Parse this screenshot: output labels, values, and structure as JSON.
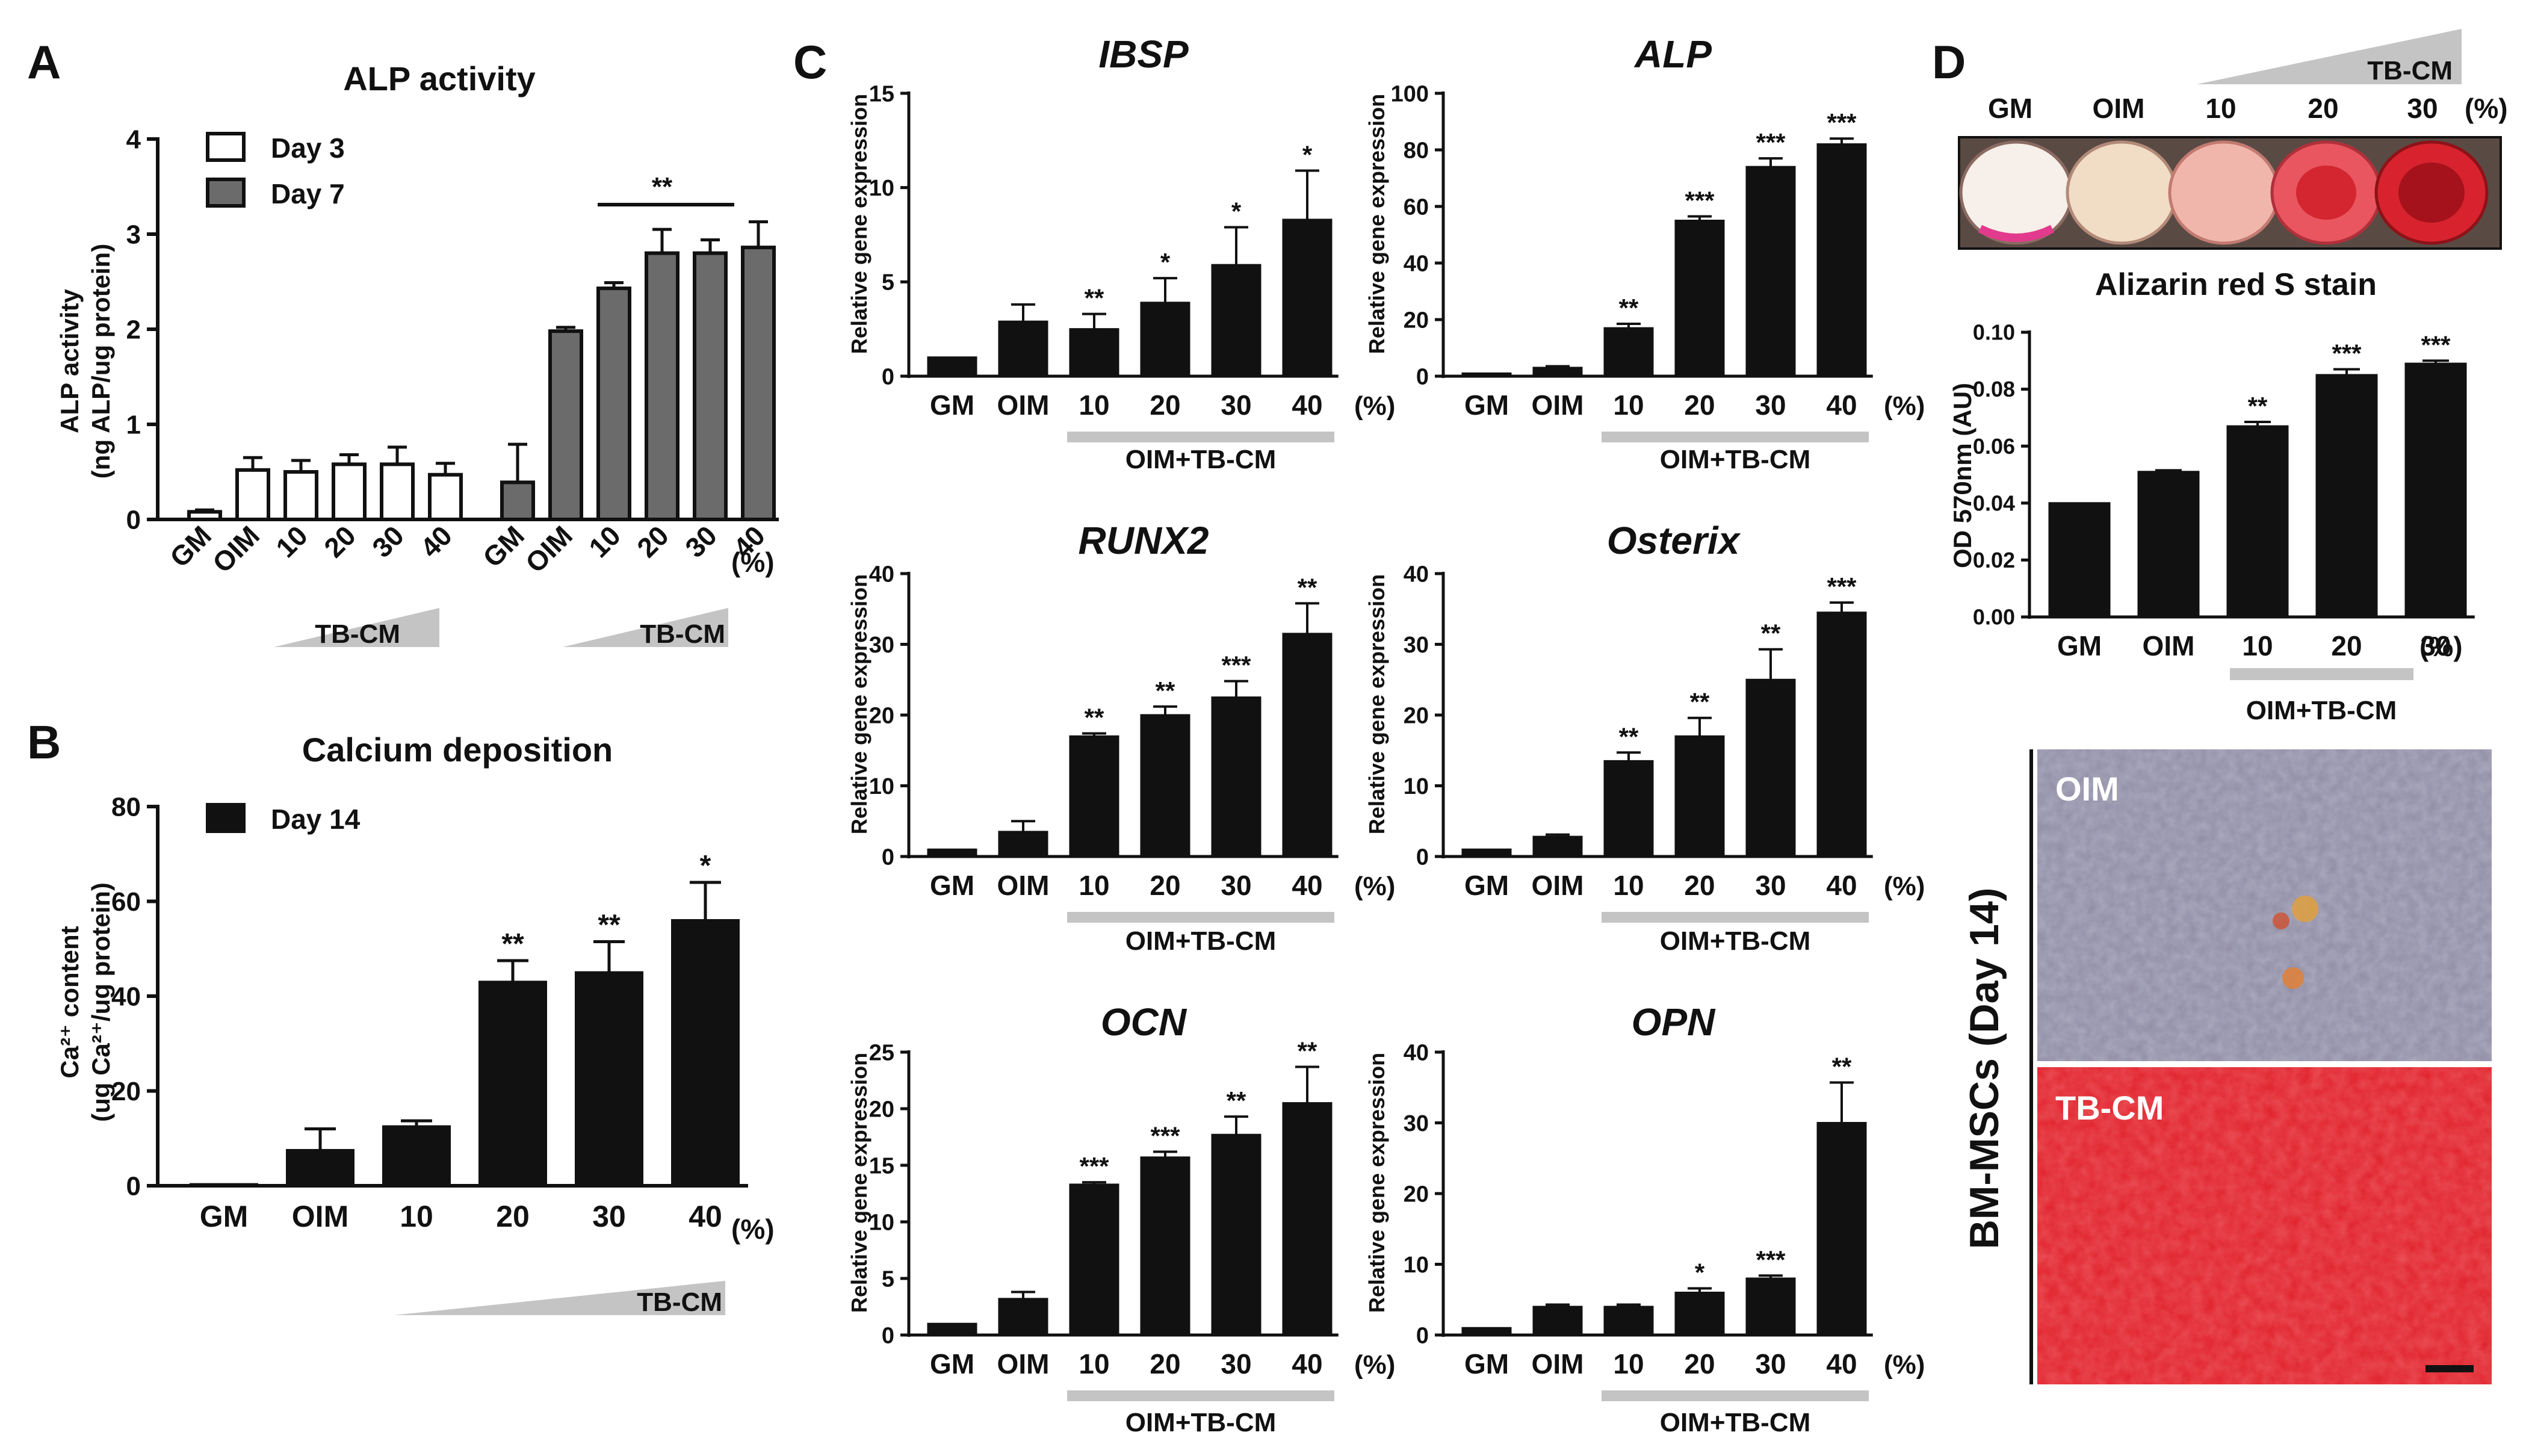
{
  "panels": {
    "A": {
      "letter": "A",
      "title": "ALP activity",
      "ylabel_line1": "ALP activity",
      "ylabel_line2": "(ng ALP/ug protein)",
      "legend": [
        "Day 3",
        "Day 7"
      ],
      "group_label": "TB-CM",
      "unit": "(%)",
      "bracket_sig": "**"
    },
    "B": {
      "letter": "B",
      "title": "Calcium deposition",
      "ylabel_line1": "Ca²⁺ content",
      "ylabel_line2": "(ug Ca²⁺/ug protein)",
      "legend": [
        "Day 14"
      ],
      "group_label": "TB-CM",
      "unit": "(%)"
    },
    "C": {
      "letter": "C",
      "ylabel": "Relative gene expression",
      "group_label": "OIM+TB-CM",
      "unit": "(%)"
    },
    "D": {
      "letter": "D",
      "gradient_label": "TB-CM",
      "plate_labels": [
        "GM",
        "OIM",
        "10",
        "20",
        "30"
      ],
      "plate_unit": "(%)",
      "stain_title": "Alizarin red S stain",
      "ylabel": "OD 570nm (AU)",
      "group_label": "OIM+TB-CM",
      "unit": "(%)",
      "side_label": "BM-MSCs (Day 14)",
      "photo_labels": [
        "OIM",
        "TB-CM"
      ]
    }
  },
  "colors": {
    "bar_black": "#111111",
    "bar_grey": "#6b6b6b",
    "bar_white": "#ffffff",
    "wedge": "#c4c4c4",
    "stain_red": "#e0202a",
    "photo_bg": "#8f8ca4"
  },
  "chart_data": [
    {
      "id": "A",
      "type": "bar",
      "title": "ALP activity",
      "categories": [
        "GM",
        "OIM",
        "10",
        "20",
        "30",
        "40"
      ],
      "ylim": [
        0,
        4
      ],
      "yticks": [
        0,
        1,
        2,
        3,
        4
      ],
      "series": [
        {
          "name": "Day 3",
          "values": [
            0.08,
            0.52,
            0.5,
            0.58,
            0.58,
            0.47
          ],
          "errors": [
            0.02,
            0.13,
            0.12,
            0.1,
            0.18,
            0.12
          ],
          "significance": [
            "",
            "",
            "",
            "",
            "",
            ""
          ]
        },
        {
          "name": "Day 7",
          "values": [
            0.39,
            1.98,
            2.43,
            2.8,
            2.8,
            2.86
          ],
          "errors": [
            0.4,
            0.04,
            0.06,
            0.25,
            0.14,
            0.27
          ],
          "significance": [
            "",
            "",
            "",
            "",
            "",
            ""
          ]
        }
      ]
    },
    {
      "id": "B",
      "type": "bar",
      "title": "Calcium deposition",
      "categories": [
        "GM",
        "OIM",
        "10",
        "20",
        "30",
        "40"
      ],
      "ylim": [
        0,
        80
      ],
      "yticks": [
        0,
        20,
        40,
        60,
        80
      ],
      "series": [
        {
          "name": "Day 14",
          "values": [
            0.3,
            7.5,
            12.5,
            43,
            45,
            56
          ],
          "errors": [
            0,
            4.5,
            1.2,
            4.5,
            6.5,
            8
          ],
          "significance": [
            "",
            "",
            "",
            "**",
            "**",
            "*"
          ]
        }
      ]
    },
    {
      "id": "IBSP",
      "type": "bar",
      "title": "IBSP",
      "categories": [
        "GM",
        "OIM",
        "10",
        "20",
        "30",
        "40"
      ],
      "ylim": [
        0,
        15
      ],
      "yticks": [
        0,
        5,
        10,
        15
      ],
      "series": [
        {
          "name": "IBSP",
          "values": [
            1,
            2.9,
            2.5,
            3.9,
            5.9,
            8.3
          ],
          "errors": [
            0,
            0.9,
            0.8,
            1.3,
            2.0,
            2.6
          ],
          "significance": [
            "",
            "",
            "**",
            "*",
            "*",
            "*"
          ]
        }
      ]
    },
    {
      "id": "ALP",
      "type": "bar",
      "title": "ALP",
      "categories": [
        "GM",
        "OIM",
        "10",
        "20",
        "30",
        "40"
      ],
      "ylim": [
        0,
        100
      ],
      "yticks": [
        0,
        20,
        40,
        60,
        80,
        100
      ],
      "series": [
        {
          "name": "ALP",
          "values": [
            1,
            3,
            17,
            55,
            74,
            82
          ],
          "errors": [
            0,
            0.5,
            1.5,
            1.5,
            3,
            2
          ],
          "significance": [
            "",
            "",
            "**",
            "***",
            "***",
            "***"
          ]
        }
      ]
    },
    {
      "id": "RUNX2",
      "type": "bar",
      "title": "RUNX2",
      "categories": [
        "GM",
        "OIM",
        "10",
        "20",
        "30",
        "40"
      ],
      "ylim": [
        0,
        40
      ],
      "yticks": [
        0,
        10,
        20,
        30,
        40
      ],
      "series": [
        {
          "name": "RUNX2",
          "values": [
            1,
            3.5,
            17,
            20,
            22.5,
            31.5
          ],
          "errors": [
            0,
            1.5,
            0.4,
            1.2,
            2.3,
            4.3
          ],
          "significance": [
            "",
            "",
            "**",
            "**",
            "***",
            "**"
          ]
        }
      ]
    },
    {
      "id": "Osterix",
      "type": "bar",
      "title": "Osterix",
      "categories": [
        "GM",
        "OIM",
        "10",
        "20",
        "30",
        "40"
      ],
      "ylim": [
        0,
        40
      ],
      "yticks": [
        0,
        10,
        20,
        30,
        40
      ],
      "series": [
        {
          "name": "Osterix",
          "values": [
            1,
            2.8,
            13.5,
            17,
            25,
            34.5
          ],
          "errors": [
            0,
            0.3,
            1.2,
            2.6,
            4.3,
            1.4
          ],
          "significance": [
            "",
            "",
            "**",
            "**",
            "**",
            "***"
          ]
        }
      ]
    },
    {
      "id": "OCN",
      "type": "bar",
      "title": "OCN",
      "categories": [
        "GM",
        "OIM",
        "10",
        "20",
        "30",
        "40"
      ],
      "ylim": [
        0,
        25
      ],
      "yticks": [
        0,
        5,
        10,
        15,
        20,
        25
      ],
      "series": [
        {
          "name": "OCN",
          "values": [
            1,
            3.2,
            13.3,
            15.7,
            17.7,
            20.5
          ],
          "errors": [
            0,
            0.6,
            0.2,
            0.5,
            1.6,
            3.2
          ],
          "significance": [
            "",
            "",
            "***",
            "***",
            "**",
            "**"
          ]
        }
      ]
    },
    {
      "id": "OPN",
      "type": "bar",
      "title": "OPN",
      "categories": [
        "GM",
        "OIM",
        "10",
        "20",
        "30",
        "40"
      ],
      "ylim": [
        0,
        40
      ],
      "yticks": [
        0,
        10,
        20,
        30,
        40
      ],
      "series": [
        {
          "name": "OPN",
          "values": [
            1,
            4,
            4,
            6,
            8,
            30
          ],
          "errors": [
            0,
            0.3,
            0.3,
            0.6,
            0.4,
            5.7
          ],
          "significance": [
            "",
            "",
            "",
            "*",
            "***",
            "**"
          ]
        }
      ]
    },
    {
      "id": "D",
      "type": "bar",
      "title": "Alizarin red S stain",
      "categories": [
        "GM",
        "OIM",
        "10",
        "20",
        "30"
      ],
      "ylim": [
        0,
        0.1
      ],
      "yticks": [
        "0.00",
        "0.02",
        "0.04",
        "0.06",
        "0.08",
        "0.10"
      ],
      "series": [
        {
          "name": "OD 570nm",
          "values": [
            0.04,
            0.051,
            0.067,
            0.085,
            0.089
          ],
          "errors": [
            0,
            0.0005,
            0.0015,
            0.002,
            0.001
          ],
          "significance": [
            "",
            "",
            "**",
            "***",
            "***"
          ]
        }
      ]
    }
  ]
}
